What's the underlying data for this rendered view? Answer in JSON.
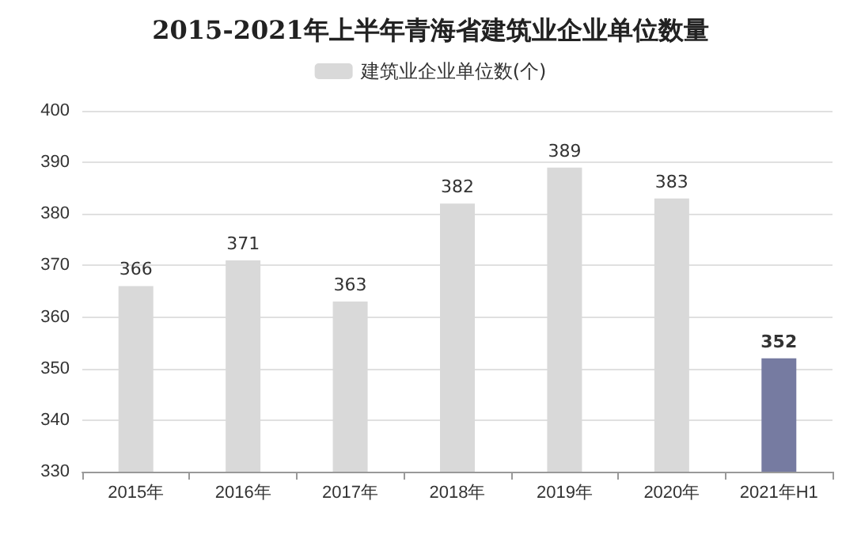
{
  "chart_data": {
    "type": "bar",
    "title": "2015-2021年上半年青海省建筑业企业单位数量",
    "categories": [
      "2015年",
      "2016年",
      "2017年",
      "2018年",
      "2019年",
      "2020年",
      "2021年H1"
    ],
    "series": [
      {
        "name": "建筑业企业单位数(个)",
        "color": "#d9d9d9",
        "colors": [
          "#d9d9d9",
          "#d9d9d9",
          "#d9d9d9",
          "#d9d9d9",
          "#d9d9d9",
          "#d9d9d9",
          "#767ba1"
        ],
        "values": [
          366,
          371,
          363,
          382,
          389,
          383,
          352
        ]
      }
    ],
    "ylim": [
      330,
      400
    ],
    "yticks": [
      330,
      340,
      350,
      360,
      370,
      380,
      390,
      400
    ],
    "grid": "y",
    "legend": "top",
    "data_labels": true
  }
}
